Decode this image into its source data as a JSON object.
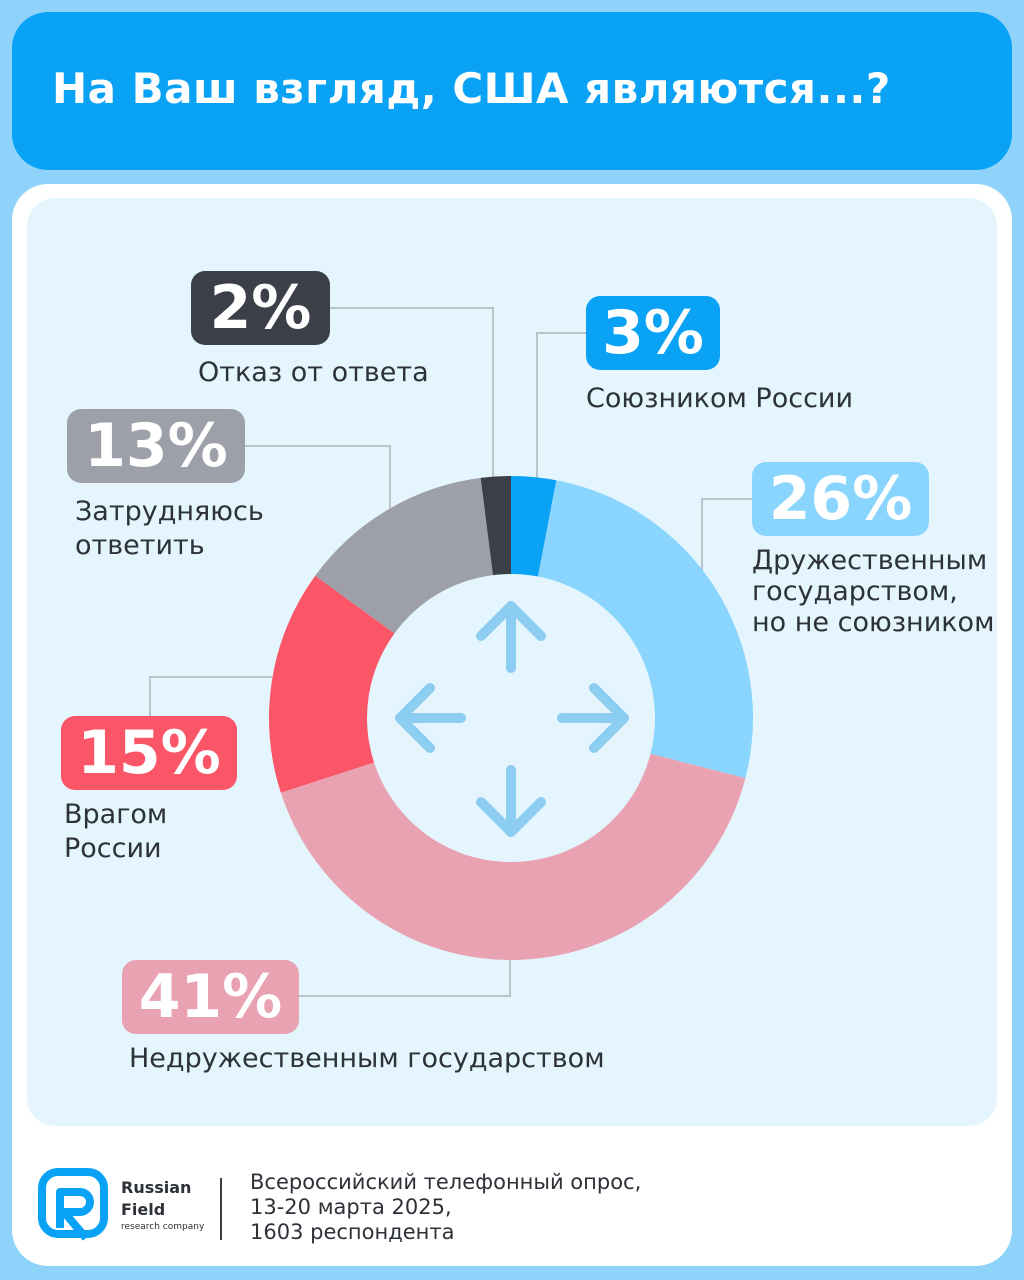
{
  "header": {
    "title": "На Ваш взгляд, США являются...?"
  },
  "chart_data": {
    "type": "pie",
    "donut": true,
    "slices": [
      {
        "label": "Союзником России",
        "value": 3,
        "display": "3%",
        "color": "#0aa2f5"
      },
      {
        "label": "Дружественным\nгосударством,\nно не союзником",
        "value": 26,
        "display": "26%",
        "color": "#8ad5fd"
      },
      {
        "label": "Недружественным государством",
        "value": 41,
        "display": "41%",
        "color": "#e9a2b1"
      },
      {
        "label": "Врагом\nРоссии",
        "value": 15,
        "display": "15%",
        "color": "#fb5568"
      },
      {
        "label": "Затрудняюсь\nответить",
        "value": 13,
        "display": "13%",
        "color": "#9d9fa9"
      },
      {
        "label": "Отказ от ответа",
        "value": 2,
        "display": "2%",
        "color": "#3b3f47"
      }
    ],
    "center_icon": "four-arrows-icon"
  },
  "footer": {
    "logo_name_1": "Russian",
    "logo_name_2": "Field",
    "logo_subtitle": "research company",
    "note": "Всероссийский телефонный опрос,\n13-20 марта 2025,\n1603 респондента"
  }
}
